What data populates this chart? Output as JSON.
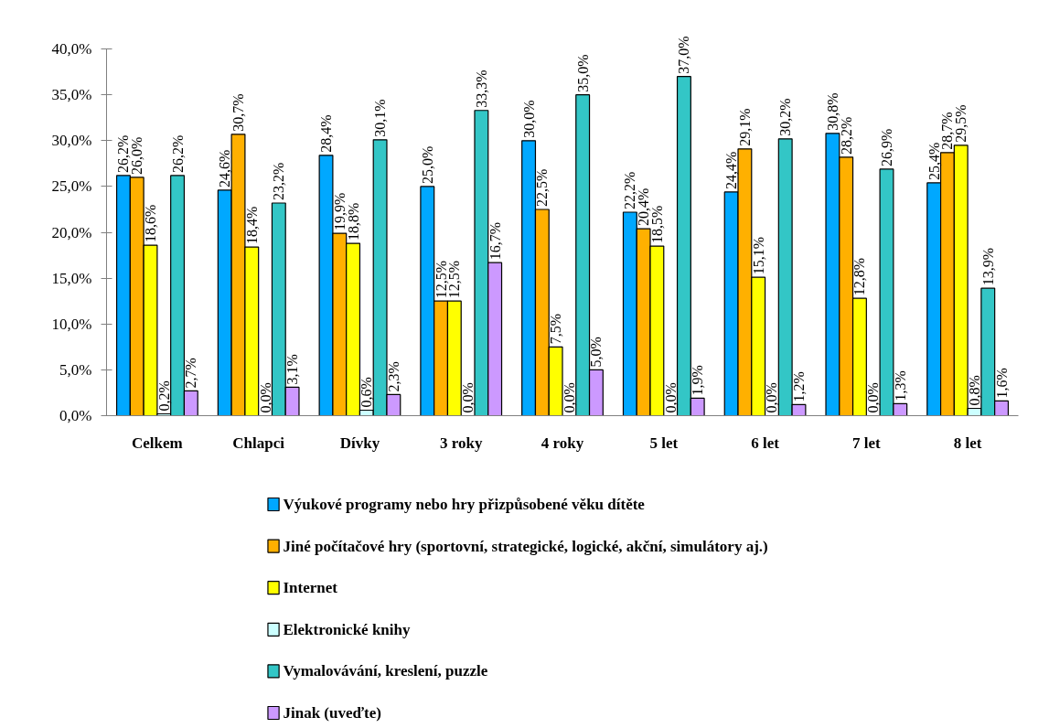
{
  "chart_data": {
    "type": "bar",
    "categories": [
      "Celkem",
      "Chlapci",
      "Dívky",
      "3 roky",
      "4 roky",
      "5 let",
      "6 let",
      "7 let",
      "8 let"
    ],
    "series": [
      {
        "name": "Výukové programy nebo hry přizpůsobené věku dítěte",
        "color": "#00a8ff",
        "values": [
          26.2,
          24.6,
          28.4,
          25.0,
          30.0,
          22.2,
          24.4,
          30.8,
          25.4
        ],
        "value_labels": [
          "26,2%",
          "24,6%",
          "28,4%",
          "25,0%",
          "30,0%",
          "22,2%",
          "24,4%",
          "30,8%",
          "25,4%"
        ]
      },
      {
        "name": "Jiné počítačové hry (sportovní, strategické, logické, akční, simulátory aj.)",
        "color": "#ffb000",
        "values": [
          26.0,
          30.7,
          19.9,
          12.5,
          22.5,
          20.4,
          29.1,
          28.2,
          28.7
        ],
        "value_labels": [
          "26,0%",
          "30,7%",
          "19,9%",
          "12,5%",
          "22,5%",
          "20,4%",
          "29,1%",
          "28,2%",
          "28,7%"
        ]
      },
      {
        "name": "Internet",
        "color": "#ffff00",
        "values": [
          18.6,
          18.4,
          18.8,
          12.5,
          7.5,
          18.5,
          15.1,
          12.8,
          29.5
        ],
        "value_labels": [
          "18,6%",
          "18,4%",
          "18,8%",
          "12,5%",
          "7,5%",
          "18,5%",
          "15,1%",
          "12,8%",
          "29,5%"
        ]
      },
      {
        "name": "Elektronické knihy",
        "color": "#ccffff",
        "values": [
          0.2,
          0.0,
          0.6,
          0.0,
          0.0,
          0.0,
          0.0,
          0.0,
          0.8
        ],
        "value_labels": [
          "0,2%",
          "0,0%",
          "0,6%",
          "0,0%",
          "0,0%",
          "0,0%",
          "0,0%",
          "0,0%",
          "0,8%"
        ]
      },
      {
        "name": "Vymalovávání, kreslení, puzzle",
        "color": "#33c6c6",
        "values": [
          26.2,
          23.2,
          30.1,
          33.3,
          35.0,
          37.0,
          30.2,
          26.9,
          13.9
        ],
        "value_labels": [
          "26,2%",
          "23,2%",
          "30,1%",
          "33,3%",
          "35,0%",
          "37,0%",
          "30,2%",
          "26,9%",
          "13,9%"
        ]
      },
      {
        "name": "Jinak (uveďte)",
        "color": "#cc99ff",
        "values": [
          2.7,
          3.1,
          2.3,
          16.7,
          5.0,
          1.9,
          1.2,
          1.3,
          1.6
        ],
        "value_labels": [
          "2,7%",
          "3,1%",
          "2,3%",
          "16,7%",
          "5,0%",
          "1,9%",
          "1,2%",
          "1,3%",
          "1,6%"
        ]
      }
    ],
    "ylim": [
      0,
      40
    ],
    "yticks": [
      {
        "value": 0,
        "label": "0,0%"
      },
      {
        "value": 5,
        "label": "5,0%"
      },
      {
        "value": 10,
        "label": "10,0%"
      },
      {
        "value": 15,
        "label": "15,0%"
      },
      {
        "value": 20,
        "label": "20,0%"
      },
      {
        "value": 25,
        "label": "25,0%"
      },
      {
        "value": 30,
        "label": "30,0%"
      },
      {
        "value": 35,
        "label": "35,0%"
      },
      {
        "value": 40,
        "label": "40,0%"
      }
    ],
    "legend": "bottom"
  }
}
